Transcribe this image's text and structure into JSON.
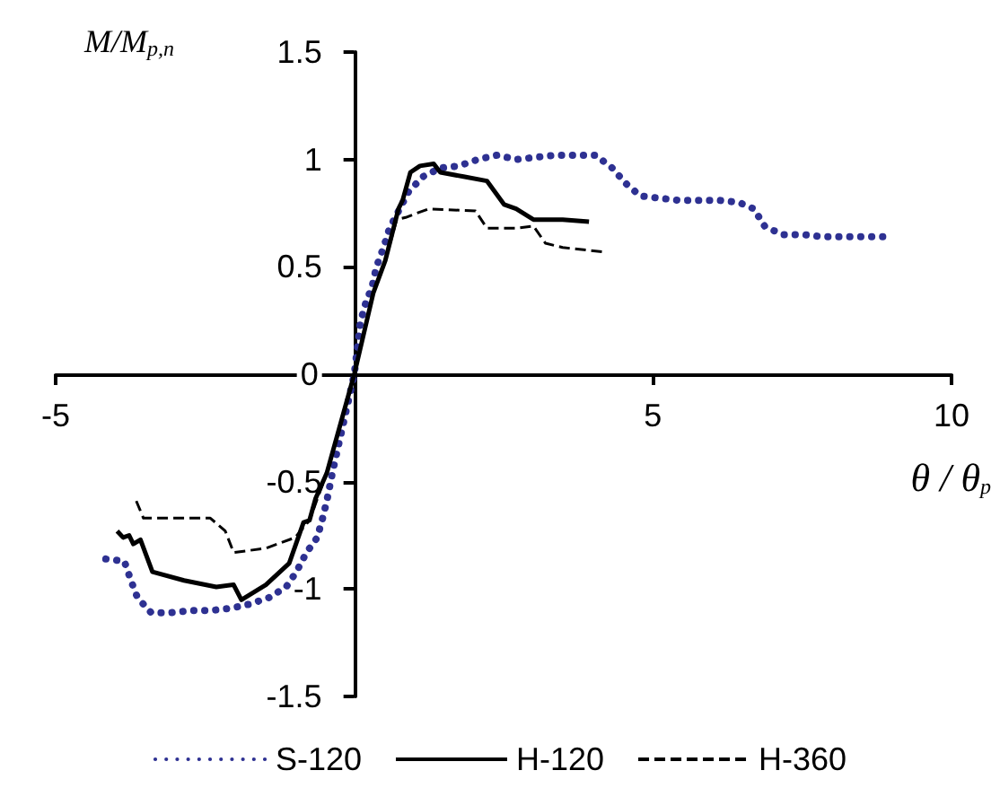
{
  "chart_data": {
    "type": "line",
    "xlabel": "θ / θ$_{p}$",
    "ylabel": "M/M$_{p,n}$",
    "xlim": [
      -5,
      10
    ],
    "xticks": [
      -5,
      {
        "value": 0,
        "label": null
      },
      5,
      10
    ],
    "ylim": [
      -1.5,
      1.5
    ],
    "yticks": [
      -1.5,
      -1,
      -0.5,
      0,
      0.5,
      1,
      1.5
    ],
    "grid": false,
    "legend": "bottom",
    "marker": "none",
    "series": [
      {
        "name": "S-120",
        "color": "#2e3192",
        "line_style": "dotted",
        "x": [
          -4.16,
          -3.85,
          -3.74,
          -3.63,
          -3.4,
          -3.07,
          -2.74,
          -2.41,
          -2.08,
          -1.75,
          -1.43,
          -1.14,
          -0.97,
          -0.8,
          -0.62,
          -0.53,
          -0.46,
          -0.36,
          0,
          0.1,
          0.19,
          0.3,
          0.37,
          0.49,
          0.59,
          0.76,
          0.91,
          1.15,
          1.44,
          1.75,
          2.07,
          2.39,
          2.71,
          3.04,
          3.38,
          3.71,
          4.04,
          4.32,
          4.54,
          4.79,
          5.1,
          5.43,
          5.77,
          6.1,
          6.44,
          6.69,
          6.87,
          7.16,
          7.51,
          7.85,
          8.18,
          8.52,
          8.86
        ],
        "values": [
          -0.86,
          -0.87,
          -0.96,
          -1.04,
          -1.11,
          -1.11,
          -1.1,
          -1.1,
          -1.09,
          -1.07,
          -1.04,
          -0.99,
          -0.92,
          -0.83,
          -0.76,
          -0.67,
          -0.59,
          -0.45,
          0,
          0.24,
          0.33,
          0.41,
          0.5,
          0.59,
          0.68,
          0.77,
          0.85,
          0.92,
          0.96,
          0.97,
          1,
          1.02,
          1,
          1.01,
          1.02,
          1.02,
          1.02,
          0.96,
          0.89,
          0.83,
          0.82,
          0.81,
          0.81,
          0.81,
          0.8,
          0.77,
          0.69,
          0.65,
          0.65,
          0.64,
          0.64,
          0.64,
          0.64
        ]
      },
      {
        "name": "H-120",
        "color": "#000000",
        "line_style": "solid",
        "x": [
          -3.97,
          -3.87,
          -3.77,
          -3.7,
          -3.58,
          -3.38,
          -2.85,
          -2.31,
          -2.02,
          -1.89,
          -1.48,
          -1.09,
          -0.85,
          -0.75,
          -0.65,
          -0.46,
          0,
          0.32,
          0.52,
          0.74,
          0.81,
          0.94,
          1.1,
          1.33,
          1.44,
          1.83,
          2.22,
          2.51,
          2.71,
          3,
          3.49,
          3.93
        ],
        "values": [
          -0.73,
          -0.76,
          -0.75,
          -0.79,
          -0.77,
          -0.92,
          -0.96,
          -0.99,
          -0.98,
          -1.05,
          -0.98,
          -0.88,
          -0.69,
          -0.68,
          -0.58,
          -0.46,
          0,
          0.38,
          0.53,
          0.77,
          0.81,
          0.94,
          0.97,
          0.98,
          0.94,
          0.92,
          0.9,
          0.79,
          0.77,
          0.72,
          0.72,
          0.71
        ]
      },
      {
        "name": "H-360",
        "color": "#000000",
        "line_style": "dashed",
        "x": [
          -3.65,
          -3.53,
          -2.41,
          -2.16,
          -2.02,
          -1.48,
          -0.99,
          -0.75,
          -0.46,
          0,
          0.32,
          0.52,
          0.71,
          0.86,
          1.05,
          1.25,
          2.03,
          2.22,
          2.71,
          3,
          3.2,
          3.49,
          4.17
        ],
        "values": [
          -0.59,
          -0.67,
          -0.67,
          -0.73,
          -0.83,
          -0.81,
          -0.76,
          -0.68,
          -0.46,
          0,
          0.38,
          0.53,
          0.72,
          0.73,
          0.75,
          0.77,
          0.76,
          0.68,
          0.68,
          0.69,
          0.61,
          0.59,
          0.57
        ]
      }
    ]
  }
}
